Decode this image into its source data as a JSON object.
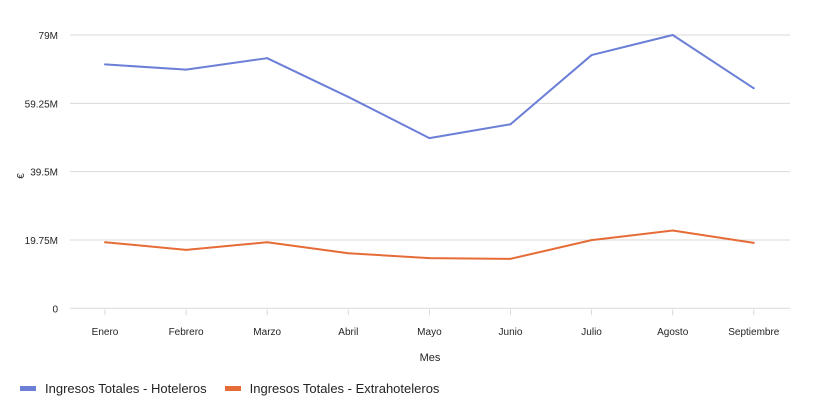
{
  "chart_data": {
    "type": "line",
    "title": "",
    "xlabel": "Mes",
    "ylabel": "€",
    "ylim": [
      0,
      79
    ],
    "y_unit_suffix": "M",
    "yticks": [
      "0",
      "19.75M",
      "39.5M",
      "59.25M",
      "79M"
    ],
    "ytick_values": [
      0,
      19.75,
      39.5,
      59.25,
      79
    ],
    "grid": true,
    "legend_position": "bottom-left",
    "categories": [
      "Enero",
      "Febrero",
      "Marzo",
      "Abril",
      "Mayo",
      "Junio",
      "Julio",
      "Agosto",
      "Septiembre"
    ],
    "series": [
      {
        "name": "Ingresos Totales - Hoteleros",
        "color": "#6B7FD7",
        "values": [
          70.5,
          69.0,
          72.3,
          61.1,
          49.2,
          53.2,
          73.2,
          79.0,
          63.6
        ]
      },
      {
        "name": "Ingresos Totales - Extrahoteleros",
        "color": "#E66C37",
        "values": [
          19.1,
          16.9,
          19.1,
          15.9,
          14.5,
          14.3,
          19.7,
          22.5,
          18.9
        ]
      }
    ]
  }
}
